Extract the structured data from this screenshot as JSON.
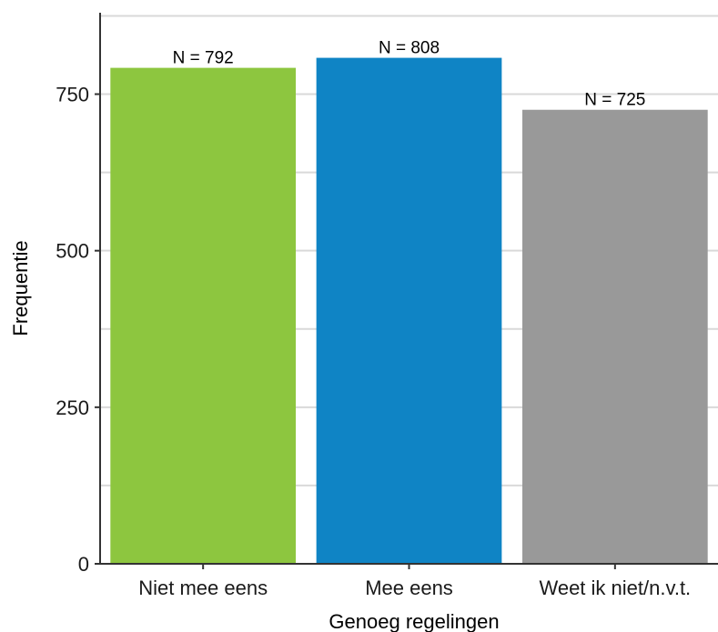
{
  "chart_data": {
    "type": "bar",
    "categories": [
      "Niet mee eens",
      "Mee eens",
      "Weet ik niet/n.v.t."
    ],
    "values": [
      792,
      808,
      725
    ],
    "data_labels": [
      "N = 792",
      "N = 808",
      "N = 725"
    ],
    "colors": [
      "#8DC63F",
      "#0F84C5",
      "#999999"
    ],
    "xlabel": "Genoeg regelingen",
    "ylabel": "Frequentie",
    "ylim": [
      0,
      880
    ],
    "yticks": [
      0,
      250,
      500,
      750
    ],
    "ytick_labels": [
      "0",
      "250",
      "500",
      "750"
    ],
    "grid": "horizontal major and minor",
    "gridColor": "#d9d9d9"
  }
}
